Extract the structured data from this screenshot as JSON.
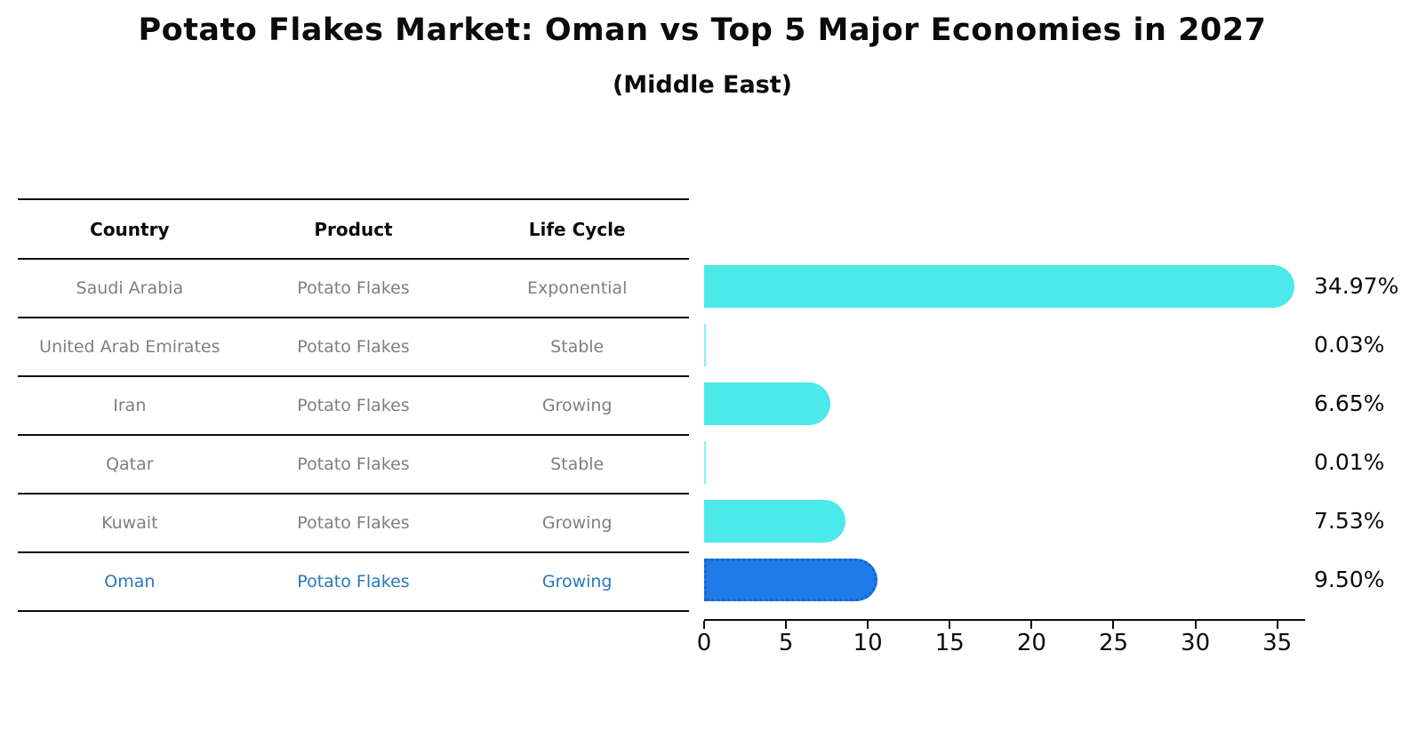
{
  "title": "Potato Flakes Market: Oman vs Top 5 Major Economies in 2027",
  "subtitle": "(Middle East)",
  "table": {
    "headers": [
      "Country",
      "Product",
      "Life Cycle"
    ],
    "rows": [
      {
        "country": "Saudi Arabia",
        "product": "Potato Flakes",
        "life_cycle": "Exponential",
        "highlighted": false
      },
      {
        "country": "United Arab Emirates",
        "product": "Potato Flakes",
        "life_cycle": "Stable",
        "highlighted": false
      },
      {
        "country": "Iran",
        "product": "Potato Flakes",
        "life_cycle": "Growing",
        "highlighted": false
      },
      {
        "country": "Qatar",
        "product": "Potato Flakes",
        "life_cycle": "Stable",
        "highlighted": false
      },
      {
        "country": "Kuwait",
        "product": "Potato Flakes",
        "life_cycle": "Growing",
        "highlighted": false
      },
      {
        "country": "Oman",
        "product": "Potato Flakes",
        "life_cycle": "Growing",
        "highlighted": true
      }
    ]
  },
  "chart_data": {
    "type": "bar",
    "orientation": "horizontal",
    "title": "Potato Flakes Market: Oman vs Top 5 Major Economies in 2027",
    "subtitle": "(Middle East)",
    "categories": [
      "Saudi Arabia",
      "United Arab Emirates",
      "Iran",
      "Qatar",
      "Kuwait",
      "Oman"
    ],
    "values": [
      34.97,
      0.03,
      6.65,
      0.01,
      7.53,
      9.5
    ],
    "value_labels": [
      "34.97%",
      "0.03%",
      "6.65%",
      "0.01%",
      "7.53%",
      "9.50%"
    ],
    "x_ticks": [
      0,
      5,
      10,
      15,
      20,
      25,
      30,
      35
    ],
    "xlim": [
      0,
      36.7
    ],
    "xlabel": "",
    "ylabel": "",
    "grid": false,
    "legend": false,
    "highlight_category": "Oman",
    "colors": {
      "bar": "#4be9e9",
      "highlight_bar": "#1e7be8",
      "highlight_bar_border": "#1565cf",
      "row_text": "#7f7f7f",
      "highlight_text": "#2878be",
      "axis": "#0b0b0b"
    }
  }
}
